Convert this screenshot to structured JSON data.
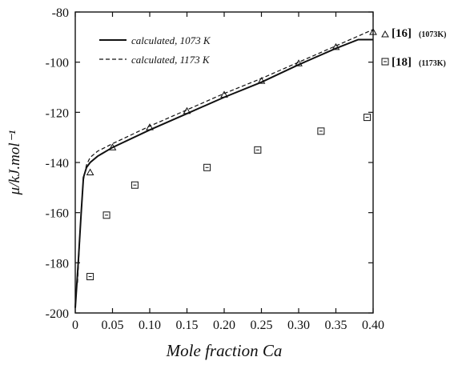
{
  "chart_data": {
    "type": "line",
    "xlabel": "Mole fraction Ca",
    "ylabel": "μ/kJ.mol⁻¹",
    "xlim": [
      0,
      0.4
    ],
    "ylim": [
      -200,
      -80
    ],
    "x_ticks": [
      0,
      0.05,
      0.1,
      0.15,
      0.2,
      0.25,
      0.3,
      0.35,
      0.4
    ],
    "x_tick_labels": [
      "0",
      "0.05",
      "0.10",
      "0.15",
      "0.20",
      "0.25",
      "0.30",
      "0.35",
      "0.40"
    ],
    "y_ticks": [
      -200,
      -180,
      -160,
      -140,
      -120,
      -100,
      -80
    ],
    "y_tick_labels": [
      "-200",
      "-180",
      "-160",
      "-140",
      "-120",
      "-100",
      "-80"
    ],
    "legend_position": "top-left",
    "lines": [
      {
        "name": "calculated, 1073 K",
        "style": "solid",
        "points": [
          [
            0.0,
            -198
          ],
          [
            0.004,
            -180
          ],
          [
            0.008,
            -160
          ],
          [
            0.011,
            -146
          ],
          [
            0.015,
            -142
          ],
          [
            0.02,
            -140
          ],
          [
            0.03,
            -137.5
          ],
          [
            0.05,
            -134
          ],
          [
            0.1,
            -127
          ],
          [
            0.15,
            -120.5
          ],
          [
            0.2,
            -114
          ],
          [
            0.25,
            -108
          ],
          [
            0.3,
            -101
          ],
          [
            0.35,
            -94.5
          ],
          [
            0.38,
            -91
          ],
          [
            0.4,
            -91
          ]
        ]
      },
      {
        "name": "calculated, 1173 K",
        "style": "dashed",
        "points": [
          [
            0.003,
            -188
          ],
          [
            0.007,
            -165
          ],
          [
            0.011,
            -147
          ],
          [
            0.015,
            -141
          ],
          [
            0.02,
            -138
          ],
          [
            0.03,
            -135.5
          ],
          [
            0.05,
            -132.5
          ],
          [
            0.1,
            -125.5
          ],
          [
            0.15,
            -119
          ],
          [
            0.2,
            -112.5
          ],
          [
            0.25,
            -106.5
          ],
          [
            0.3,
            -100
          ],
          [
            0.35,
            -93.5
          ],
          [
            0.4,
            -87
          ]
        ]
      }
    ],
    "markers": [
      {
        "ref": "[16]",
        "temp": "(1073K)",
        "symbol": "triangle",
        "points": [
          [
            0.02,
            -144
          ],
          [
            0.05,
            -134
          ],
          [
            0.1,
            -126
          ],
          [
            0.15,
            -119.5
          ],
          [
            0.2,
            -113
          ],
          [
            0.25,
            -107.5
          ],
          [
            0.3,
            -100.5
          ],
          [
            0.35,
            -94
          ],
          [
            0.4,
            -88
          ]
        ]
      },
      {
        "ref": "[18]",
        "temp": "(1173K)",
        "symbol": "square",
        "points": [
          [
            0.02,
            -185.5
          ],
          [
            0.042,
            -161
          ],
          [
            0.08,
            -149
          ],
          [
            0.177,
            -142
          ],
          [
            0.245,
            -135
          ],
          [
            0.33,
            -127.5
          ],
          [
            0.392,
            -122
          ]
        ]
      }
    ]
  }
}
